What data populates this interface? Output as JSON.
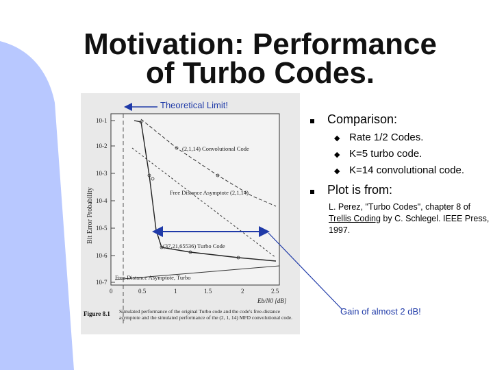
{
  "title": {
    "line1": "Motivation: Performance",
    "line2": "of Turbo Codes."
  },
  "bullets": {
    "comparison": "Comparison:",
    "sub": [
      "Rate 1/2 Codes.",
      "K=5 turbo code.",
      "K=14 convolutional code."
    ],
    "plot_from": "Plot is from:",
    "reference": {
      "part1": "L. Perez, \"Turbo Codes\", chapter 8 of ",
      "book": "Trellis Coding",
      "part2": " by C. Schlegel. IEEE Press, 1997."
    }
  },
  "annotations": {
    "theoretical_limit": "Theoretical Limit!",
    "gain": "Gain of almost 2 dB!"
  },
  "figure": {
    "ylabel": "Bit Error Probability",
    "xlabel": "Eb/N0 [dB]",
    "y_ticks": [
      "10-1",
      "10-2",
      "10-3",
      "10-4",
      "10-5",
      "10-6",
      "10-7"
    ],
    "x_ticks": [
      "0",
      "0.5",
      "1",
      "1.5",
      "2",
      "2.5"
    ],
    "labels": {
      "conv": "(2,1,14) Convolutional Code",
      "free_asym": "Free Distance Asymptote (2,1,14)",
      "turbo": "(37,21,65536) Turbo Code",
      "free_asym_turbo": "Free Distance Asymptote, Turbo"
    },
    "caption_label": "Figure 8.1",
    "caption": "Simulated performance of the original Turbo code and the code's free-distance asymptote and the simulated performance of the (2, 1, 14) MFD convolutional code."
  },
  "colors": {
    "accent_bar": "#b8c8ff",
    "arrow": "#1f3aa8",
    "scan_bg": "#e9e9e9"
  }
}
